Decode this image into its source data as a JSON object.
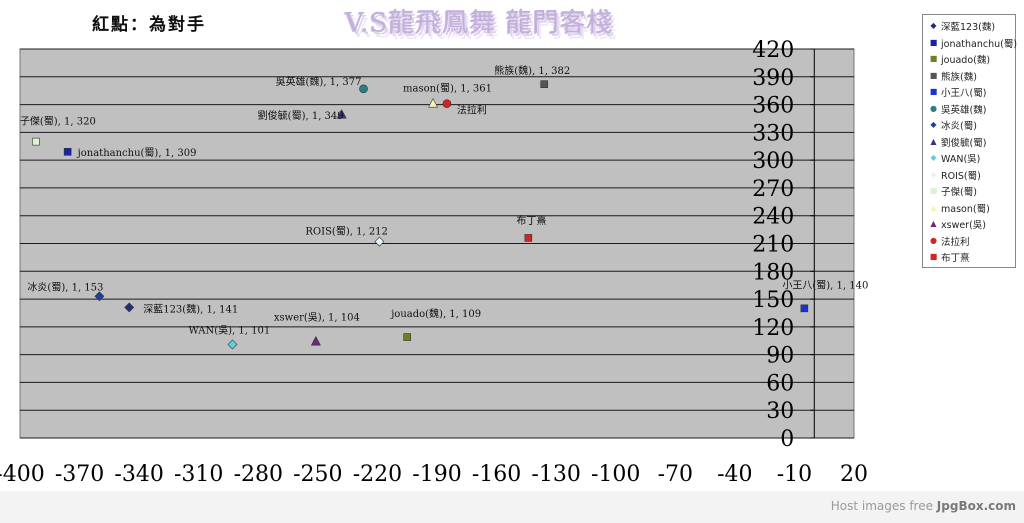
{
  "header": {
    "title": "紅點：為對手",
    "banner": "V.S龍飛鳳舞 龍門客棧"
  },
  "footer": {
    "text_pre": "Host images free ",
    "text_brand": "JpgBox.com"
  },
  "chart_data": {
    "type": "scatter",
    "xlim": [
      -400,
      20
    ],
    "ylim": [
      0,
      420
    ],
    "x_ticks": [
      -400,
      -370,
      -340,
      -310,
      -280,
      -250,
      -220,
      -190,
      -160,
      -130,
      -100,
      -70,
      -40,
      -10,
      20
    ],
    "y_ticks": [
      0,
      30,
      60,
      90,
      120,
      150,
      180,
      210,
      240,
      270,
      300,
      330,
      360,
      390,
      420
    ],
    "grid": true,
    "legend_position": "right",
    "plot_background": "#c0c0c0",
    "series": [
      {
        "name": "深藍123(魏)",
        "marker": "diamond",
        "color": "#1f2f7a",
        "x": -345,
        "y": 141,
        "label": "深藍123(魏), 1, 141"
      },
      {
        "name": "jonathanchu(蜀)",
        "marker": "square",
        "color": "#1a22a8",
        "x": -376,
        "y": 309,
        "label": "jonathanchu(蜀), 1, 309"
      },
      {
        "name": "jouado(魏)",
        "marker": "square",
        "color": "#6f7f22",
        "x": -205,
        "y": 109,
        "label": "jouado(魏), 1, 109"
      },
      {
        "name": "熊族(魏)",
        "marker": "square",
        "color": "#555555",
        "x": -136,
        "y": 382,
        "label": "熊族(魏), 1, 382"
      },
      {
        "name": "小王八(蜀)",
        "marker": "square",
        "color": "#1b2fd6",
        "x": -5,
        "y": 140,
        "label": "小王八(蜀), 1, 140"
      },
      {
        "name": "吳英雄(魏)",
        "marker": "circle",
        "color": "#2c7e85",
        "x": -227,
        "y": 377,
        "label": "吳英雄(魏), 1, 377"
      },
      {
        "name": "冰炎(蜀)",
        "marker": "diamond",
        "color": "#1f3fa0",
        "x": -360,
        "y": 153,
        "label": "冰炎(蜀), 1, 153"
      },
      {
        "name": "劉俊毓(蜀)",
        "marker": "triangle",
        "color": "#3a2f8a",
        "x": -238,
        "y": 349,
        "label": "劉俊毓(蜀), 1, 349"
      },
      {
        "name": "WAN(吳)",
        "marker": "diamond",
        "color": "#5fd0d8",
        "x": -293,
        "y": 101,
        "label": "WAN(吳), 1, 101"
      },
      {
        "name": "ROIS(蜀)",
        "marker": "diamond",
        "color": "#e4f4f8",
        "x": -219,
        "y": 212,
        "label": "ROIS(蜀), 1, 212"
      },
      {
        "name": "子傑(蜀)",
        "marker": "square",
        "color": "#d8f5d0",
        "x": -392,
        "y": 320,
        "label": "子傑(蜀), 1, 320"
      },
      {
        "name": "mason(蜀)",
        "marker": "triangle",
        "color": "#f6f2b8",
        "x": -192,
        "y": 361,
        "label": "mason(蜀), 1, 361"
      },
      {
        "name": "xswer(吳)",
        "marker": "triangle",
        "color": "#6b2a76",
        "x": -251,
        "y": 104,
        "label": "xswer(吳), 1, 104"
      },
      {
        "name": "法拉利",
        "marker": "circle",
        "color": "#d42323",
        "x": -185,
        "y": 361,
        "label": "法拉利"
      },
      {
        "name": "布丁熹",
        "marker": "square",
        "color": "#d42323",
        "x": -144,
        "y": 216,
        "label": "布丁熹"
      }
    ]
  }
}
